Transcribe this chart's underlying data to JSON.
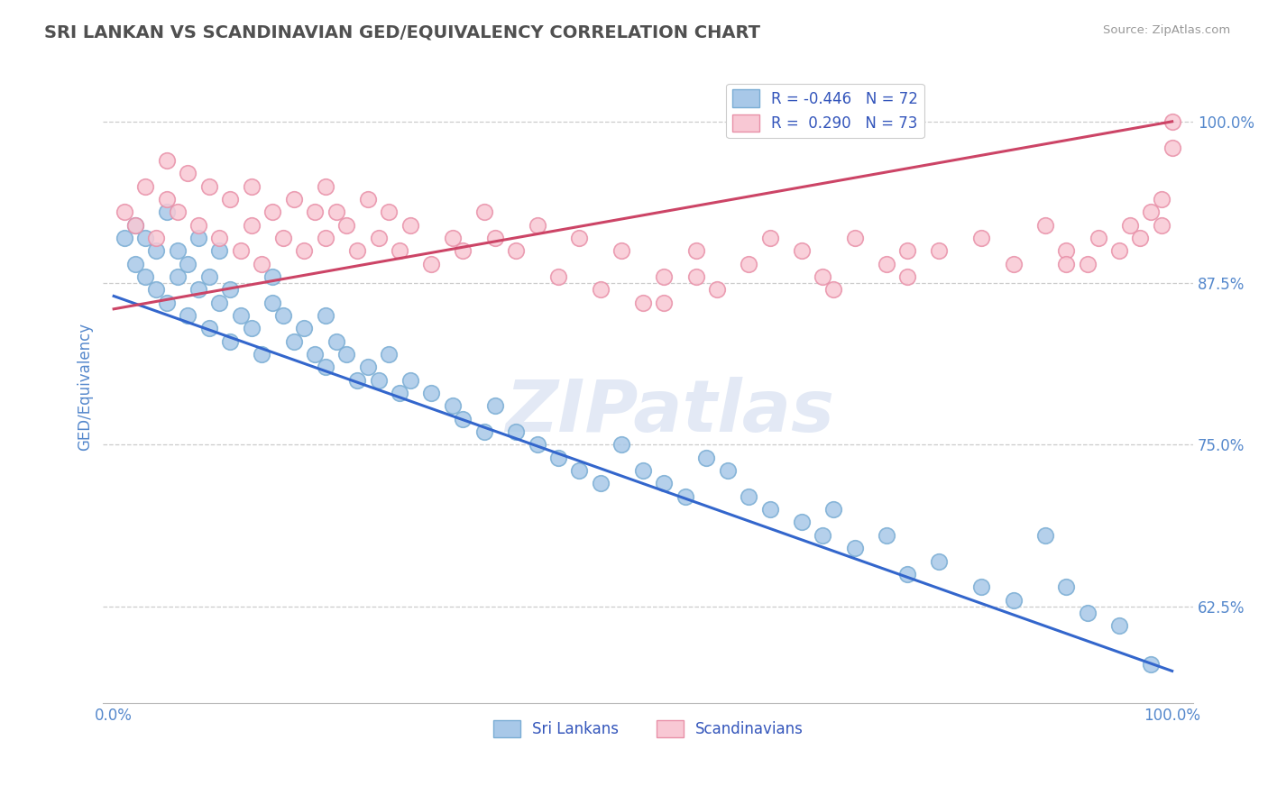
{
  "title": "SRI LANKAN VS SCANDINAVIAN GED/EQUIVALENCY CORRELATION CHART",
  "source": "Source: ZipAtlas.com",
  "ylabel": "GED/Equivalency",
  "yticks": [
    62.5,
    75.0,
    87.5,
    100.0
  ],
  "xticks": [
    0,
    100
  ],
  "xticklabels": [
    "0.0%",
    "100.0%"
  ],
  "yticklabels": [
    "62.5%",
    "75.0%",
    "87.5%",
    "100.0%"
  ],
  "blue_R": -0.446,
  "blue_N": 72,
  "pink_R": 0.29,
  "pink_N": 73,
  "blue_color": "#a8c8e8",
  "blue_edge_color": "#7aadd4",
  "pink_color": "#f8c8d4",
  "pink_edge_color": "#e890a8",
  "blue_line_color": "#3366cc",
  "pink_line_color": "#cc4466",
  "legend_blue_label": "R = -0.446   N = 72",
  "legend_pink_label": "R =  0.290   N = 73",
  "legend_blue_patch": "#a8c8e8",
  "legend_pink_patch": "#f8c8d4",
  "watermark": "ZIPatlas",
  "background_color": "#ffffff",
  "grid_color": "#cccccc",
  "title_color": "#505050",
  "axis_label_color": "#5588cc",
  "blue_line_x0": 0,
  "blue_line_y0": 86.5,
  "blue_line_x1": 100,
  "blue_line_y1": 57.5,
  "pink_line_x0": 0,
  "pink_line_y0": 85.5,
  "pink_line_x1": 100,
  "pink_line_y1": 100.0,
  "ylim_low": 55,
  "ylim_high": 104,
  "xlim_low": -1,
  "xlim_high": 102,
  "blue_x": [
    1,
    2,
    2,
    3,
    3,
    4,
    4,
    5,
    5,
    6,
    6,
    7,
    7,
    8,
    8,
    9,
    9,
    10,
    10,
    11,
    11,
    12,
    13,
    14,
    15,
    15,
    16,
    17,
    18,
    19,
    20,
    20,
    21,
    22,
    23,
    24,
    25,
    26,
    27,
    28,
    30,
    32,
    33,
    35,
    36,
    38,
    40,
    42,
    44,
    46,
    48,
    50,
    52,
    54,
    56,
    58,
    60,
    62,
    65,
    67,
    68,
    70,
    73,
    75,
    78,
    82,
    85,
    88,
    90,
    92,
    95,
    98
  ],
  "blue_y": [
    91,
    89,
    92,
    88,
    91,
    87,
    90,
    86,
    93,
    88,
    90,
    85,
    89,
    87,
    91,
    84,
    88,
    86,
    90,
    83,
    87,
    85,
    84,
    82,
    88,
    86,
    85,
    83,
    84,
    82,
    81,
    85,
    83,
    82,
    80,
    81,
    80,
    82,
    79,
    80,
    79,
    78,
    77,
    76,
    78,
    76,
    75,
    74,
    73,
    72,
    75,
    73,
    72,
    71,
    74,
    73,
    71,
    70,
    69,
    68,
    70,
    67,
    68,
    65,
    66,
    64,
    63,
    68,
    64,
    62,
    61,
    58
  ],
  "pink_x": [
    1,
    2,
    3,
    4,
    5,
    5,
    6,
    7,
    8,
    9,
    10,
    11,
    12,
    13,
    13,
    14,
    15,
    16,
    17,
    18,
    19,
    20,
    20,
    21,
    22,
    23,
    24,
    25,
    26,
    27,
    28,
    30,
    32,
    33,
    35,
    36,
    38,
    40,
    42,
    44,
    46,
    48,
    50,
    52,
    55,
    57,
    60,
    62,
    65,
    67,
    68,
    70,
    73,
    75,
    78,
    82,
    85,
    88,
    90,
    92,
    93,
    95,
    96,
    97,
    98,
    99,
    99,
    100,
    100,
    52,
    75,
    90,
    55
  ],
  "pink_y": [
    93,
    92,
    95,
    91,
    94,
    97,
    93,
    96,
    92,
    95,
    91,
    94,
    90,
    95,
    92,
    89,
    93,
    91,
    94,
    90,
    93,
    95,
    91,
    93,
    92,
    90,
    94,
    91,
    93,
    90,
    92,
    89,
    91,
    90,
    93,
    91,
    90,
    92,
    88,
    91,
    87,
    90,
    86,
    88,
    90,
    87,
    89,
    91,
    90,
    88,
    87,
    91,
    89,
    88,
    90,
    91,
    89,
    92,
    90,
    89,
    91,
    90,
    92,
    91,
    93,
    92,
    94,
    100,
    98,
    86,
    90,
    89,
    88
  ]
}
